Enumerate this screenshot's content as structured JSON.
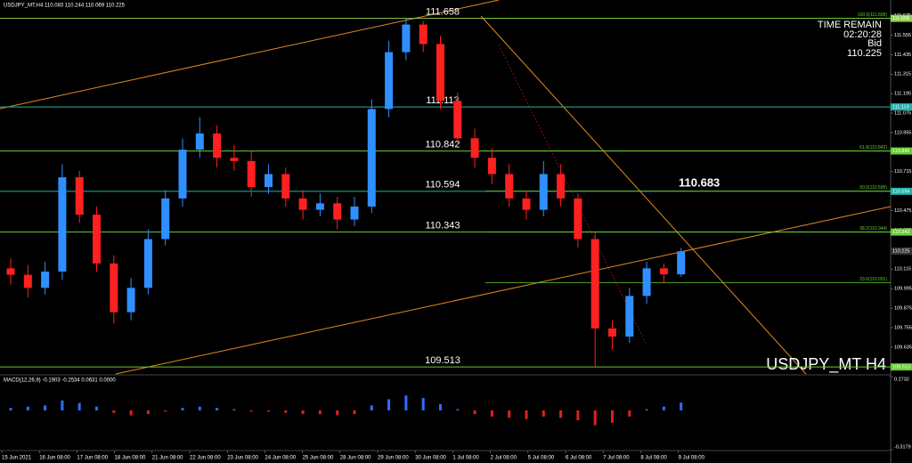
{
  "header": {
    "symbol_info": "USDJPY_MT,H4  110.083 110.244 110.069 110.225"
  },
  "overlay": {
    "time_remain_label": "TIME REMAIN",
    "time_remain": "02:20:28",
    "bid_label": "Bid",
    "bid": "110.225",
    "ma_value": "110.683",
    "watermark": "USDJPY_MT H4"
  },
  "time_axis": {
    "labels": [
      "15 Jun 2021",
      "16 Jun 08:00",
      "17 Jun 08:00",
      "18 Jun 08:00",
      "21 Jun 08:00",
      "22 Jun 08:00",
      "23 Jun 08:00",
      "24 Jun 08:00",
      "25 Jun 08:00",
      "28 Jun 08:00",
      "29 Jun 08:00",
      "30 Jun 08:00",
      "1 Jul 08:00",
      "2 Jul 08:00",
      "5 Jul 08:00",
      "6 Jul 08:00",
      "7 Jul 08:00",
      "8 Jul 08:00",
      "9 Jul 08:00"
    ]
  },
  "chart_data": [
    {
      "type": "candlestick",
      "open": [
        110.12,
        110.08,
        110.0,
        110.1,
        110.68,
        110.45,
        110.15,
        109.85,
        110.0,
        110.3,
        110.55,
        110.85,
        110.95,
        110.8,
        110.78,
        110.62,
        110.7,
        110.55,
        110.48,
        110.52,
        110.42,
        110.5,
        111.1,
        111.45,
        111.62,
        111.5,
        111.15,
        110.92,
        110.8,
        110.7,
        110.55,
        110.48,
        110.7,
        110.55,
        110.3,
        109.75,
        109.7,
        109.95,
        110.12,
        110.083
      ],
      "high": [
        110.18,
        110.14,
        110.16,
        110.76,
        110.72,
        110.5,
        110.2,
        110.06,
        110.36,
        110.6,
        110.92,
        111.05,
        111.0,
        110.88,
        110.84,
        110.76,
        110.74,
        110.6,
        110.58,
        110.56,
        110.56,
        111.16,
        111.52,
        111.658,
        111.64,
        111.55,
        111.2,
        110.98,
        110.86,
        110.76,
        110.6,
        110.78,
        110.76,
        110.58,
        110.34,
        109.8,
        110.0,
        110.16,
        110.15,
        110.244
      ],
      "low": [
        110.02,
        109.94,
        109.96,
        110.05,
        110.4,
        110.1,
        109.78,
        109.8,
        109.96,
        110.26,
        110.5,
        110.8,
        110.74,
        110.72,
        110.56,
        110.58,
        110.5,
        110.42,
        110.44,
        110.36,
        110.38,
        110.46,
        111.05,
        111.4,
        111.45,
        111.1,
        110.88,
        110.74,
        110.64,
        110.5,
        110.42,
        110.44,
        110.5,
        110.25,
        109.513,
        109.62,
        109.66,
        109.9,
        110.03,
        110.069
      ],
      "close": [
        110.08,
        110.0,
        110.1,
        110.68,
        110.45,
        110.15,
        109.85,
        110.0,
        110.3,
        110.55,
        110.85,
        110.95,
        110.8,
        110.78,
        110.62,
        110.7,
        110.55,
        110.48,
        110.52,
        110.42,
        110.5,
        111.1,
        111.45,
        111.62,
        111.5,
        111.15,
        110.92,
        110.8,
        110.7,
        110.55,
        110.48,
        110.7,
        110.55,
        110.3,
        109.75,
        109.7,
        109.95,
        110.12,
        110.083,
        110.225
      ],
      "up_color": "#2f8fff",
      "down_color": "#ff2020",
      "ylim": [
        109.47,
        111.76
      ],
      "yticks": [
        111.675,
        111.555,
        111.435,
        111.315,
        111.195,
        111.075,
        110.955,
        110.835,
        110.715,
        110.595,
        110.475,
        110.355,
        110.235,
        110.115,
        109.995,
        109.875,
        109.755,
        109.635
      ],
      "levels": [
        {
          "value": 111.658,
          "color": "#8fd14f"
        },
        {
          "value": 111.113,
          "color": "#20b2aa"
        },
        {
          "value": 110.842,
          "color": "#66cc33"
        },
        {
          "value": 110.594,
          "color": "#20b2aa"
        },
        {
          "value": 110.343,
          "color": "#66cc33"
        },
        {
          "value": 109.513,
          "color": "#66cc33"
        }
      ],
      "fib_levels": [
        {
          "value": 111.658,
          "label": "100.0(111.658)"
        },
        {
          "value": 110.842,
          "label": "61.8(110.842)"
        },
        {
          "value": 110.595,
          "label": "50.0(110.595)"
        },
        {
          "value": 110.344,
          "label": "38.2(110.344)"
        },
        {
          "value": 110.031,
          "label": "23.6(110.031)"
        }
      ],
      "fib_color": "#66cc33"
    },
    {
      "type": "bar",
      "title": "MACD(12,26,9) -0.1903 -0.2534 0.0631 0.0000",
      "values": [
        0.02,
        0.03,
        0.04,
        0.08,
        0.06,
        0.03,
        -0.02,
        -0.04,
        -0.03,
        -0.01,
        0.02,
        0.03,
        0.02,
        0.01,
        -0.01,
        -0.01,
        -0.02,
        -0.03,
        -0.03,
        -0.04,
        -0.03,
        0.04,
        0.09,
        0.12,
        0.1,
        0.05,
        0.01,
        -0.03,
        -0.05,
        -0.06,
        -0.07,
        -0.05,
        -0.06,
        -0.08,
        -0.12,
        -0.1,
        -0.05,
        0.01,
        0.03,
        0.0631
      ],
      "up_color": "#2f6fff",
      "down_color": "#e02020",
      "ylim": [
        -0.3179,
        0.2732
      ],
      "yticks": [
        0.2732,
        -0.3179
      ]
    }
  ]
}
